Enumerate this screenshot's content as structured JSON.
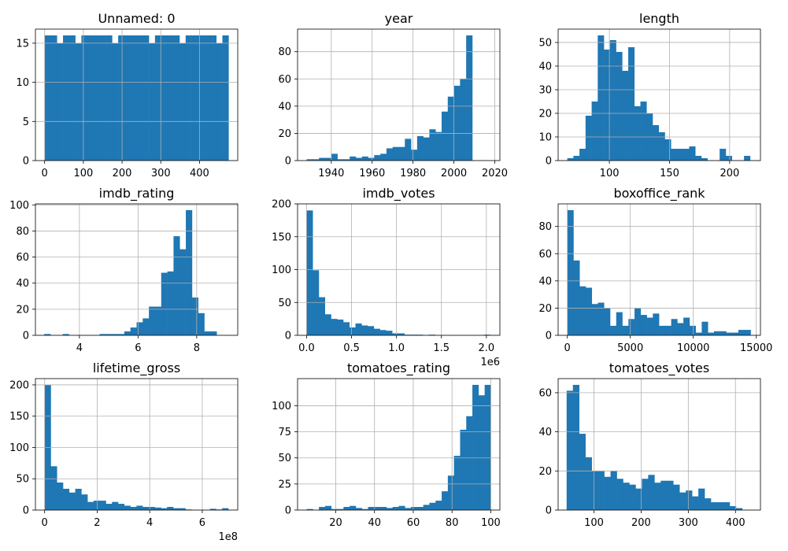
{
  "chart_data": [
    {
      "type": "bar",
      "title": "Unnamed: 0",
      "xlim": [
        -23.75,
        498.75
      ],
      "ylim": [
        0,
        16.8
      ],
      "xticks": [
        0,
        100,
        200,
        300,
        400
      ],
      "yticks": [
        0,
        5,
        10,
        15
      ],
      "bin_start": 0,
      "bin_width": 15.833,
      "values": [
        16,
        16,
        15,
        16,
        16,
        15,
        16,
        16,
        16,
        16,
        16,
        15,
        16,
        16,
        16,
        16,
        16,
        15,
        16,
        16,
        16,
        16,
        15,
        16,
        16,
        16,
        16,
        16,
        15,
        16
      ]
    },
    {
      "type": "bar",
      "title": "year",
      "xlim": [
        1923.5,
        2022.5
      ],
      "ylim": [
        0,
        96.6
      ],
      "xticks": [
        1940,
        1960,
        1980,
        2000,
        2020
      ],
      "yticks": [
        0,
        20,
        40,
        60,
        80
      ],
      "bin_start": 1928,
      "bin_width": 3,
      "values": [
        1,
        1,
        2,
        2,
        5,
        1,
        1,
        3,
        2,
        3,
        2,
        4,
        5,
        9,
        10,
        10,
        16,
        8,
        18,
        17,
        23,
        21,
        36,
        47,
        55,
        60,
        92
      ]
    },
    {
      "type": "bar",
      "title": "length",
      "xlim": [
        57.4,
        225.6
      ],
      "ylim": [
        0,
        55.65
      ],
      "xticks": [
        50,
        100,
        150,
        200
      ],
      "yticks": [
        0,
        10,
        20,
        30,
        40,
        50
      ],
      "bin_start": 65,
      "bin_width": 5.067,
      "values": [
        1,
        2,
        5,
        19,
        25,
        53,
        47,
        51,
        46,
        38,
        48,
        23,
        25,
        20,
        15,
        12,
        9,
        5,
        5,
        5,
        6,
        2,
        1,
        0,
        0,
        5,
        2,
        0,
        0,
        2
      ]
    },
    {
      "type": "bar",
      "title": "imdb_rating",
      "xlim": [
        2.5,
        9.4
      ],
      "ylim": [
        0,
        100.8
      ],
      "xticks": [
        4,
        6,
        8
      ],
      "yticks": [
        0,
        20,
        40,
        60,
        80,
        100
      ],
      "bin_start": 2.8,
      "bin_width": 0.21,
      "values": [
        1,
        0,
        0,
        1,
        0,
        0,
        0,
        0,
        0,
        1,
        1,
        1,
        1,
        3,
        6,
        10,
        13,
        22,
        22,
        48,
        49,
        76,
        66,
        96,
        29,
        17,
        3,
        3,
        0,
        0
      ]
    },
    {
      "type": "bar",
      "title": "imdb_votes",
      "xlim": [
        -0.1,
        2.15
      ],
      "ylim": [
        0,
        200
      ],
      "xticks": [
        0.0,
        0.5,
        1.0,
        1.5,
        2.0
      ],
      "xtick_labels": [
        "0.0",
        "0.5",
        "1.0",
        "1.5",
        "2.0"
      ],
      "xoffset_label": "1e6",
      "yticks": [
        0,
        50,
        100,
        150,
        200
      ],
      "bin_start": 0.0,
      "bin_width": 0.068,
      "values": [
        190,
        99,
        58,
        32,
        25,
        24,
        20,
        12,
        18,
        15,
        14,
        10,
        8,
        7,
        3,
        3,
        1,
        1,
        1,
        0,
        1,
        0,
        0,
        0,
        0,
        0,
        0,
        0,
        0,
        1
      ]
    },
    {
      "type": "bar",
      "title": "boxoffice_rank",
      "xlim": [
        -730,
        15330
      ],
      "ylim": [
        0,
        96.6
      ],
      "xticks": [
        0,
        5000,
        10000,
        15000
      ],
      "yticks": [
        0,
        20,
        40,
        60,
        80
      ],
      "bin_start": 0,
      "bin_width": 485,
      "values": [
        92,
        55,
        36,
        35,
        23,
        24,
        20,
        7,
        17,
        7,
        12,
        20,
        15,
        13,
        16,
        7,
        7,
        12,
        9,
        13,
        7,
        2,
        10,
        2,
        3,
        3,
        2,
        2,
        4,
        4
      ]
    },
    {
      "type": "bar",
      "title": "lifetime_gross",
      "xlim": [
        -0.35,
        7.35
      ],
      "ylim": [
        0,
        210
      ],
      "xticks": [
        0,
        2,
        4,
        6
      ],
      "xtick_labels": [
        "0",
        "2",
        "4",
        "6"
      ],
      "xoffset_label": "1e8",
      "yticks": [
        0,
        50,
        100,
        150,
        200
      ],
      "bin_start": 0,
      "bin_width": 0.233,
      "values": [
        200,
        70,
        44,
        34,
        28,
        34,
        25,
        13,
        15,
        15,
        10,
        13,
        10,
        7,
        5,
        7,
        5,
        5,
        4,
        3,
        5,
        3,
        3,
        1,
        0,
        0,
        0,
        2,
        1,
        3
      ]
    },
    {
      "type": "bar",
      "title": "tomatoes_rating",
      "xlim": [
        0.3,
        104.7
      ],
      "ylim": [
        0,
        126
      ],
      "xticks": [
        20,
        40,
        60,
        80,
        100
      ],
      "yticks": [
        0,
        25,
        50,
        75,
        100
      ],
      "bin_start": 5,
      "bin_width": 3.167,
      "values": [
        1,
        0,
        3,
        4,
        1,
        1,
        3,
        4,
        2,
        1,
        3,
        3,
        3,
        2,
        3,
        4,
        2,
        3,
        3,
        5,
        7,
        9,
        18,
        33,
        52,
        77,
        90,
        120,
        110,
        120
      ]
    },
    {
      "type": "bar",
      "title": "tomatoes_votes",
      "xlim": [
        24,
        453
      ],
      "ylim": [
        0,
        67.2
      ],
      "xticks": [
        100,
        200,
        300,
        400
      ],
      "yticks": [
        0,
        20,
        40,
        60
      ],
      "bin_start": 42,
      "bin_width": 13.3,
      "values": [
        61,
        64,
        39,
        27,
        20,
        20,
        17,
        20,
        16,
        14,
        13,
        11,
        16,
        18,
        14,
        15,
        15,
        13,
        9,
        10,
        7,
        11,
        6,
        4,
        4,
        4,
        2,
        1,
        0,
        0
      ]
    }
  ]
}
